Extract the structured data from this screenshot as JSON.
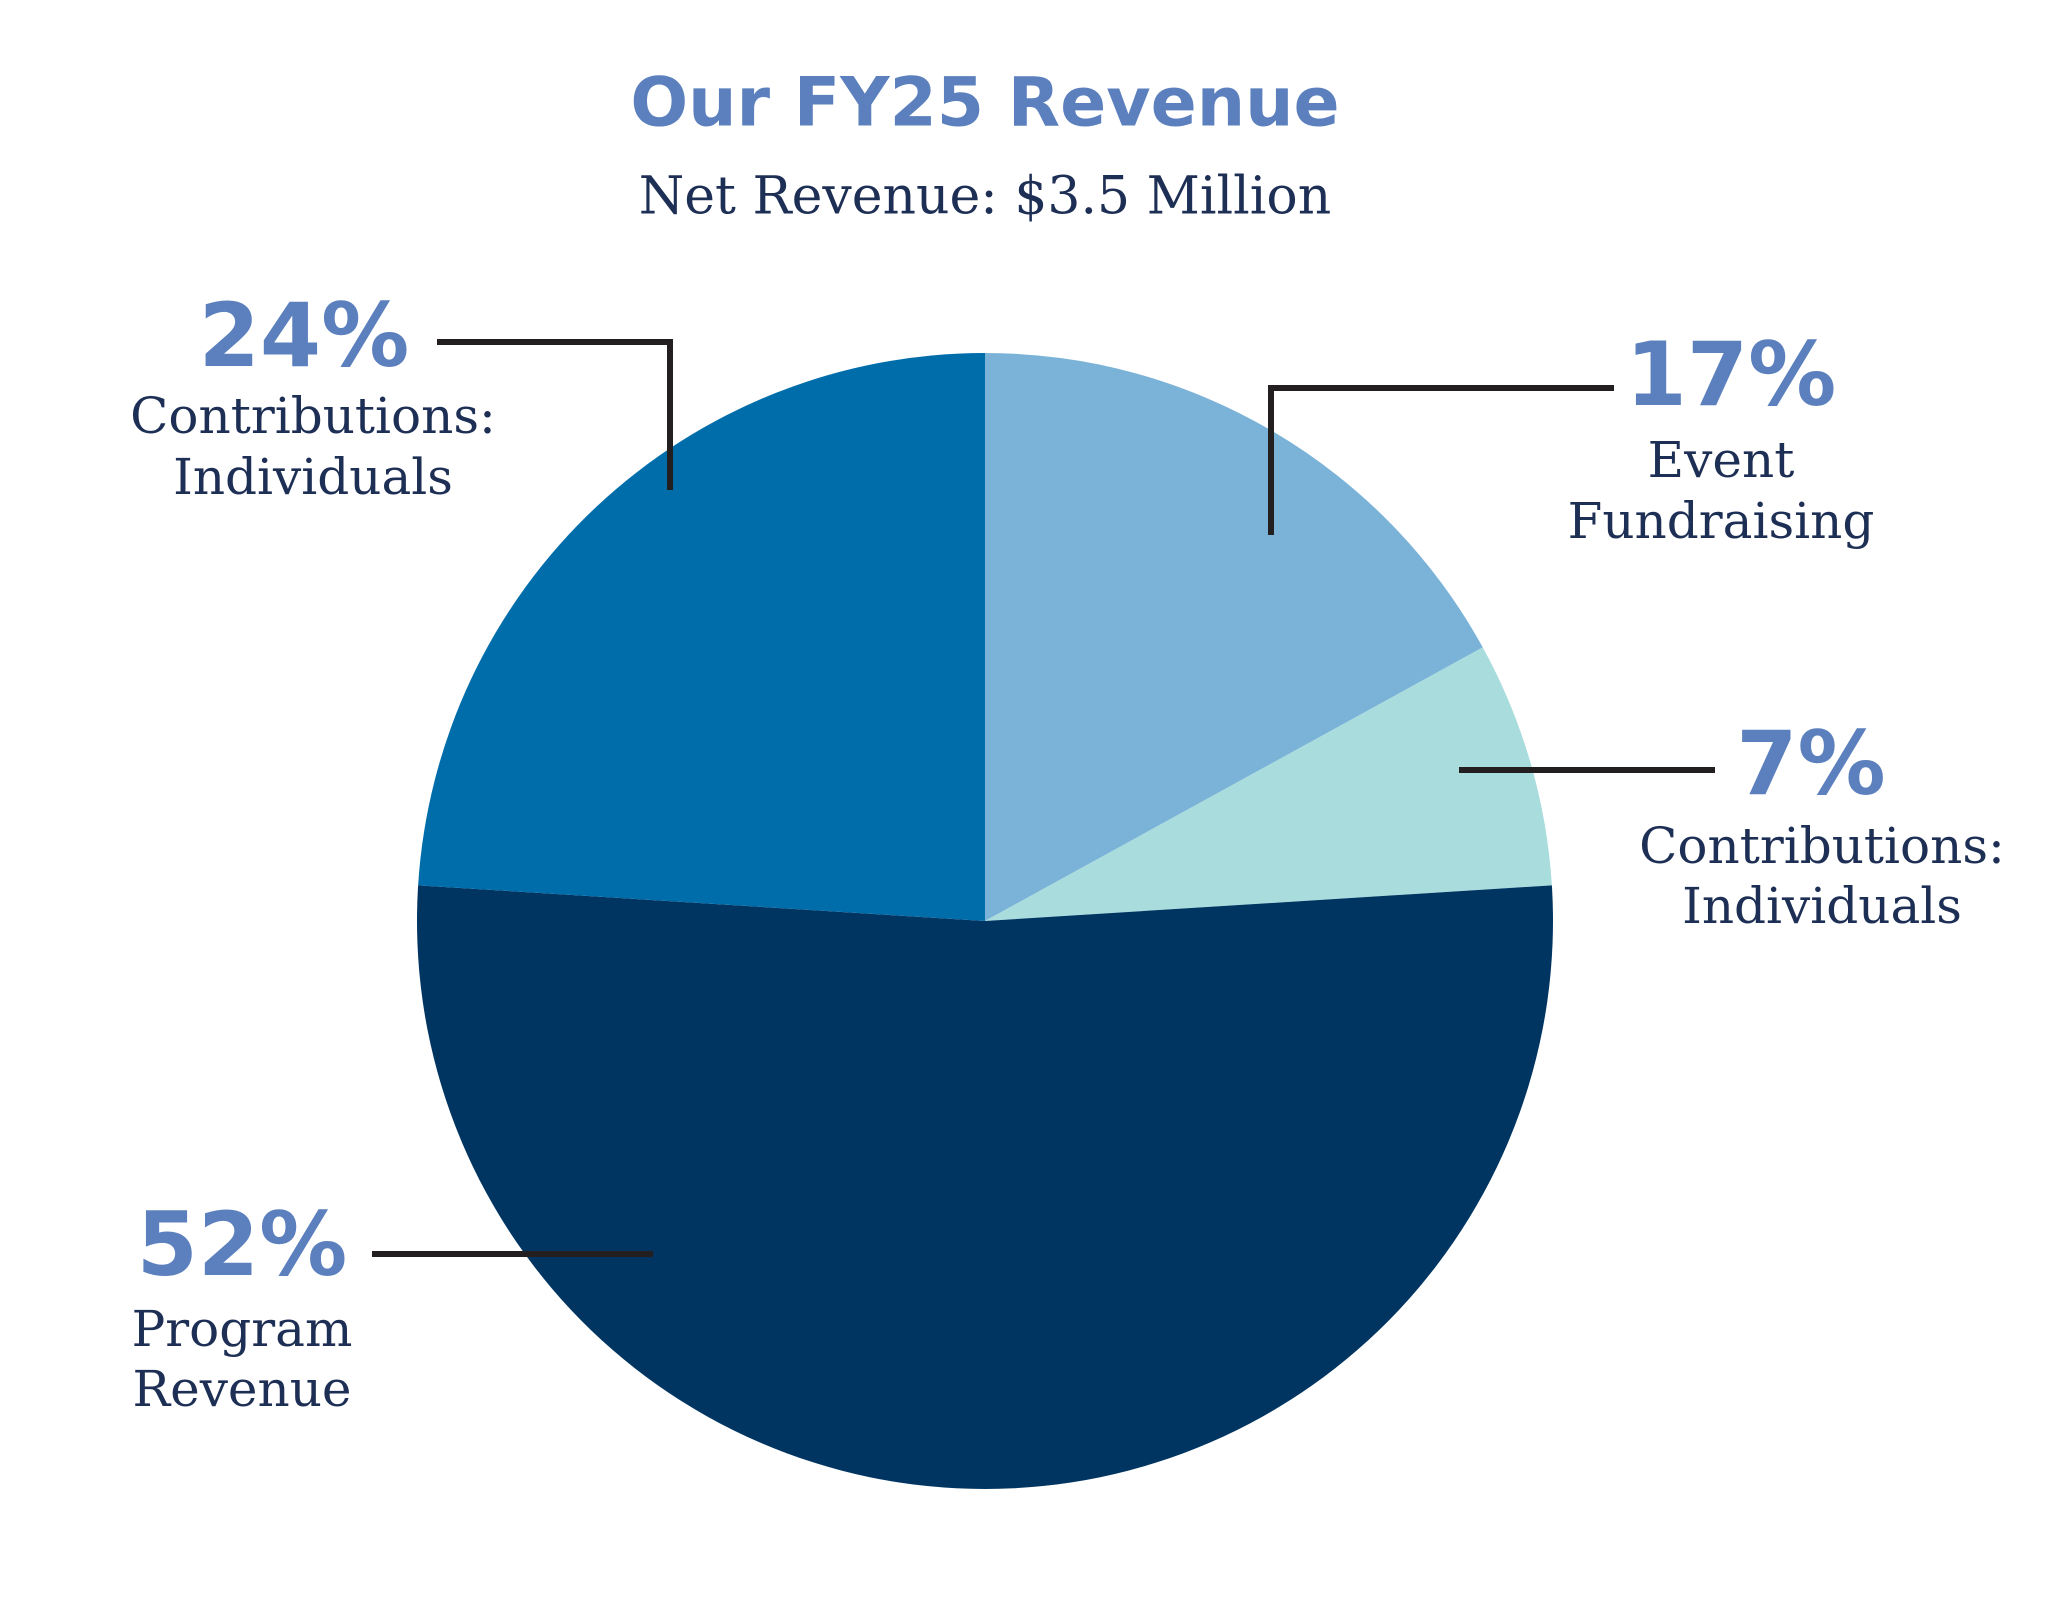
{
  "chart_data": {
    "type": "pie",
    "title": "Our FY25 Revenue",
    "subtitle": "Net Revenue: $3.5 Million",
    "categories": [
      "Event Fundraising",
      "Contributions: Individuals",
      "Program Revenue",
      "Contributions: Individuals"
    ],
    "values": [
      17,
      7,
      52,
      24
    ],
    "value_labels": [
      "17%",
      "7%",
      "52%",
      "24%"
    ],
    "colors": [
      "#7bb3d8",
      "#a8dcdd",
      "#003562",
      "#006dab"
    ]
  }
}
